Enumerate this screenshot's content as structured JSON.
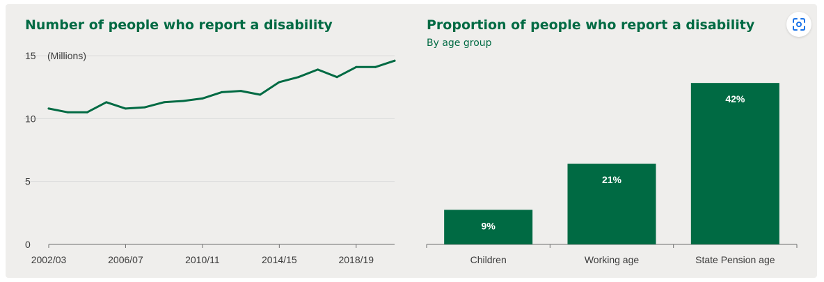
{
  "colors": {
    "primary": "#006a43",
    "background": "#efeeec",
    "grid": "#dcdcdc",
    "text": "#3c3c3c"
  },
  "lens_button": {
    "icon": "lens-scan-icon"
  },
  "chart_data": [
    {
      "type": "line",
      "title": "Number of people who report a disability",
      "unit_label": "(Millions)",
      "ylim": [
        0,
        15
      ],
      "yticks": [
        0,
        5,
        10,
        15
      ],
      "grid": true,
      "x_tick_labels": [
        "2002/03",
        "2006/07",
        "2010/11",
        "2014/15",
        "2018/19"
      ],
      "x": [
        "2002/03",
        "2003/04",
        "2004/05",
        "2005/06",
        "2006/07",
        "2007/08",
        "2008/09",
        "2009/10",
        "2010/11",
        "2011/12",
        "2012/13",
        "2013/14",
        "2014/15",
        "2015/16",
        "2016/17",
        "2017/18",
        "2018/19",
        "2019/20",
        "2020/21"
      ],
      "series": [
        {
          "values": [
            10.8,
            10.5,
            10.5,
            11.3,
            10.8,
            10.9,
            11.3,
            11.4,
            11.6,
            12.1,
            12.2,
            11.9,
            12.9,
            13.3,
            13.9,
            13.3,
            14.1,
            14.1,
            14.6
          ]
        }
      ]
    },
    {
      "type": "bar",
      "title": "Proportion of people who report a disability",
      "subtitle": "By age group",
      "categories": [
        "Children",
        "Working age",
        "State Pension age"
      ],
      "values": [
        9,
        21,
        42
      ],
      "data_labels": [
        "9%",
        "21%",
        "42%"
      ],
      "ylim": [
        0,
        50
      ]
    }
  ]
}
